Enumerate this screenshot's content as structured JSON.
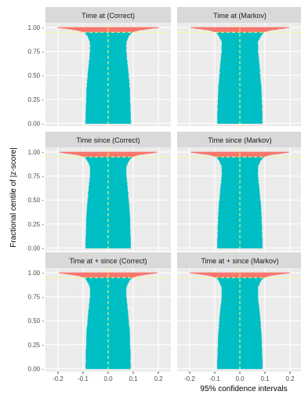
{
  "colors": {
    "background": "#ffffff",
    "panel_background": "#ebebeb",
    "grid_major": "#ffffff",
    "grid_minor": "#f2f2f2",
    "strip_background": "#d9d9d9",
    "covered": "#00bfc4",
    "not_covered": "#f8766d",
    "reference_line": "#ffff66"
  },
  "chart_data": {
    "type": "area",
    "xlabel": "95% confidence intervals",
    "ylabel": "Fractional centile of |z-score|",
    "xlim": [
      -0.25,
      0.25
    ],
    "ylim": [
      -0.03,
      1.05
    ],
    "x_ticks": [
      -0.2,
      -0.1,
      0.0,
      0.1,
      0.2
    ],
    "x_tick_labels": [
      "-0.2",
      "-0.1",
      "0.0",
      "0.1",
      "0.2"
    ],
    "y_ticks": [
      0.0,
      0.25,
      0.5,
      0.75,
      1.0
    ],
    "y_tick_labels": [
      "0.00 -",
      "0.25 -",
      "0.50 -",
      "0.75 -",
      "1.00 -"
    ],
    "reference_lines": {
      "vertical_x": 0.0,
      "horizontal_y": 0.95
    },
    "grid": true,
    "legend": "none",
    "interval_profile": [
      {
        "centile": 0.0,
        "half_width": 0.09
      },
      {
        "centile": 0.2,
        "half_width": 0.088
      },
      {
        "centile": 0.4,
        "half_width": 0.085
      },
      {
        "centile": 0.6,
        "half_width": 0.078
      },
      {
        "centile": 0.75,
        "half_width": 0.072
      },
      {
        "centile": 0.85,
        "half_width": 0.072
      },
      {
        "centile": 0.92,
        "half_width": 0.085
      },
      {
        "centile": 0.95,
        "half_width": 0.095
      },
      {
        "centile": 0.97,
        "half_width": 0.12
      },
      {
        "centile": 0.985,
        "half_width": 0.16
      },
      {
        "centile": 1.0,
        "half_width": 0.2
      }
    ],
    "panels": [
      {
        "title": "Time at (Correct)"
      },
      {
        "title": "Time at (Markov)"
      },
      {
        "title": "Time since (Correct)"
      },
      {
        "title": "Time since (Markov)"
      },
      {
        "title": "Time at + since (Correct)"
      },
      {
        "title": "Time at + since (Markov)"
      }
    ]
  }
}
